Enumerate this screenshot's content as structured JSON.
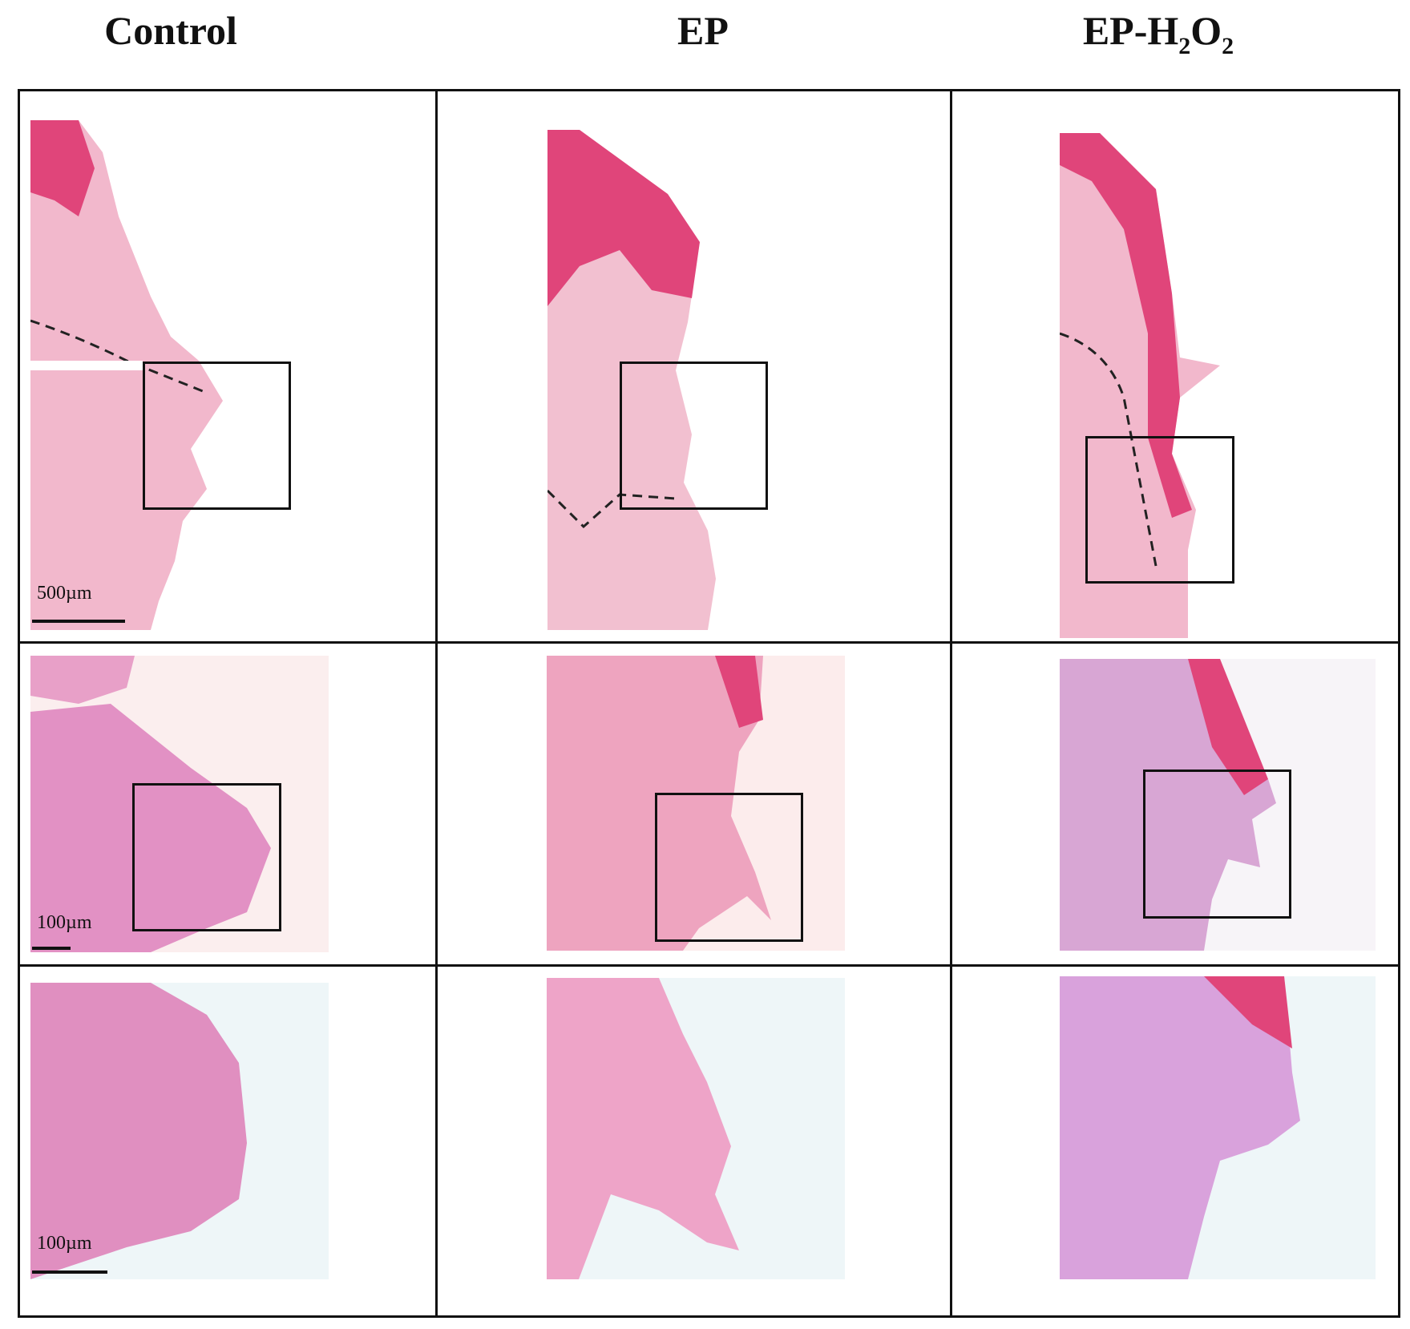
{
  "columns": {
    "control": "Control",
    "ep": "EP",
    "ep_h2o2_prefix": "EP-H",
    "ep_h2o2_sub1": "2",
    "ep_h2o2_mid": "O",
    "ep_h2o2_sub2": "2"
  },
  "scale_bars": {
    "row1": "500µm",
    "row2": "100µm",
    "row3": "100µm"
  },
  "colors": {
    "stain_light": "#f2b8cc",
    "stain_mid": "#e88aaa",
    "stain_dark": "#e0457a",
    "stain_purple": "#c996c8",
    "background_tint": "#eef6f8"
  }
}
